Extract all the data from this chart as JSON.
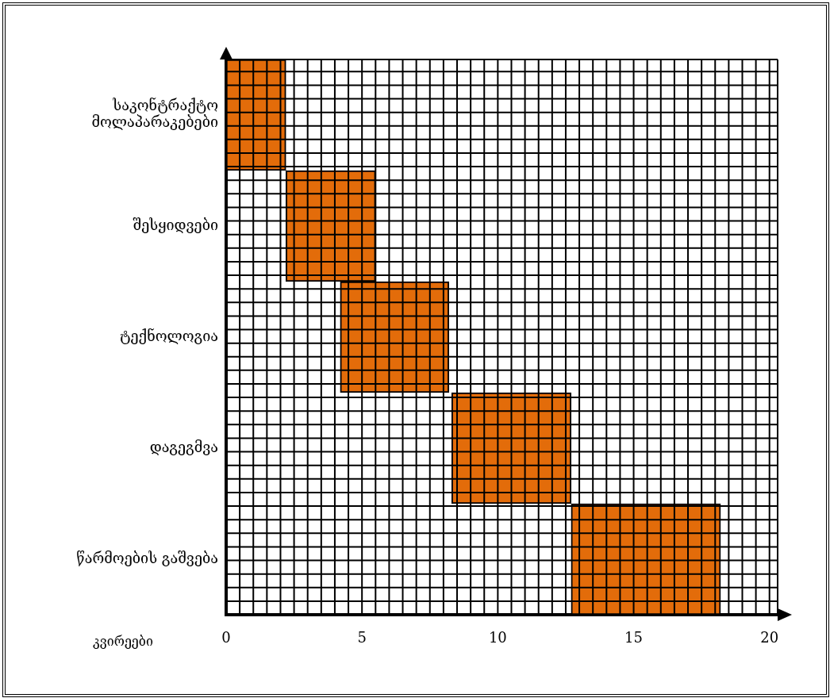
{
  "chart_data": {
    "type": "bar",
    "orientation": "horizontal",
    "xlabel": "კვირეები",
    "categories": [
      "საკონტრაქტო მოლაპარაკებები",
      "შესყიდვები",
      "ტექნოლოგია",
      "დაგეგმვა",
      "წარმოების გაშვება"
    ],
    "values": [
      2.2,
      3.3,
      4.0,
      4.4,
      5.5
    ],
    "base": [
      0,
      2.2,
      4.2,
      8.3,
      12.7
    ],
    "color": "#e36c0a",
    "xlim": [
      0,
      20.3
    ],
    "xticks": [
      0,
      {
        "value": 0.5,
        "label": null
      },
      {
        "value": 1,
        "label": null
      },
      {
        "value": 1.5,
        "label": null
      },
      {
        "value": 2,
        "label": null
      },
      {
        "value": 2.5,
        "label": null
      },
      {
        "value": 3,
        "label": null
      },
      {
        "value": 3.5,
        "label": null
      },
      {
        "value": 4,
        "label": null
      },
      {
        "value": 4.5,
        "label": null
      },
      5,
      {
        "value": 5.5,
        "label": null
      },
      {
        "value": 6,
        "label": null
      },
      {
        "value": 6.5,
        "label": null
      },
      {
        "value": 7,
        "label": null
      },
      {
        "value": 7.5,
        "label": null
      },
      {
        "value": 8,
        "label": null
      },
      {
        "value": 8.5,
        "label": null
      },
      {
        "value": 9,
        "label": null
      },
      {
        "value": 9.5,
        "label": null
      },
      10,
      {
        "value": 10.5,
        "label": null
      },
      {
        "value": 11,
        "label": null
      },
      {
        "value": 11.5,
        "label": null
      },
      {
        "value": 12,
        "label": null
      },
      {
        "value": 12.5,
        "label": null
      },
      {
        "value": 13,
        "label": null
      },
      {
        "value": 13.5,
        "label": null
      },
      {
        "value": 14,
        "label": null
      },
      {
        "value": 14.5,
        "label": null
      },
      15,
      {
        "value": 15.5,
        "label": null
      },
      {
        "value": 16,
        "label": null
      },
      {
        "value": 16.5,
        "label": null
      },
      {
        "value": 17,
        "label": null
      },
      {
        "value": 17.5,
        "label": null
      },
      {
        "value": 18,
        "label": null
      },
      {
        "value": 18.5,
        "label": null
      },
      {
        "value": 19,
        "label": null
      },
      {
        "value": 19.5,
        "label": null
      },
      20
    ],
    "grid": true,
    "legend": false
  }
}
